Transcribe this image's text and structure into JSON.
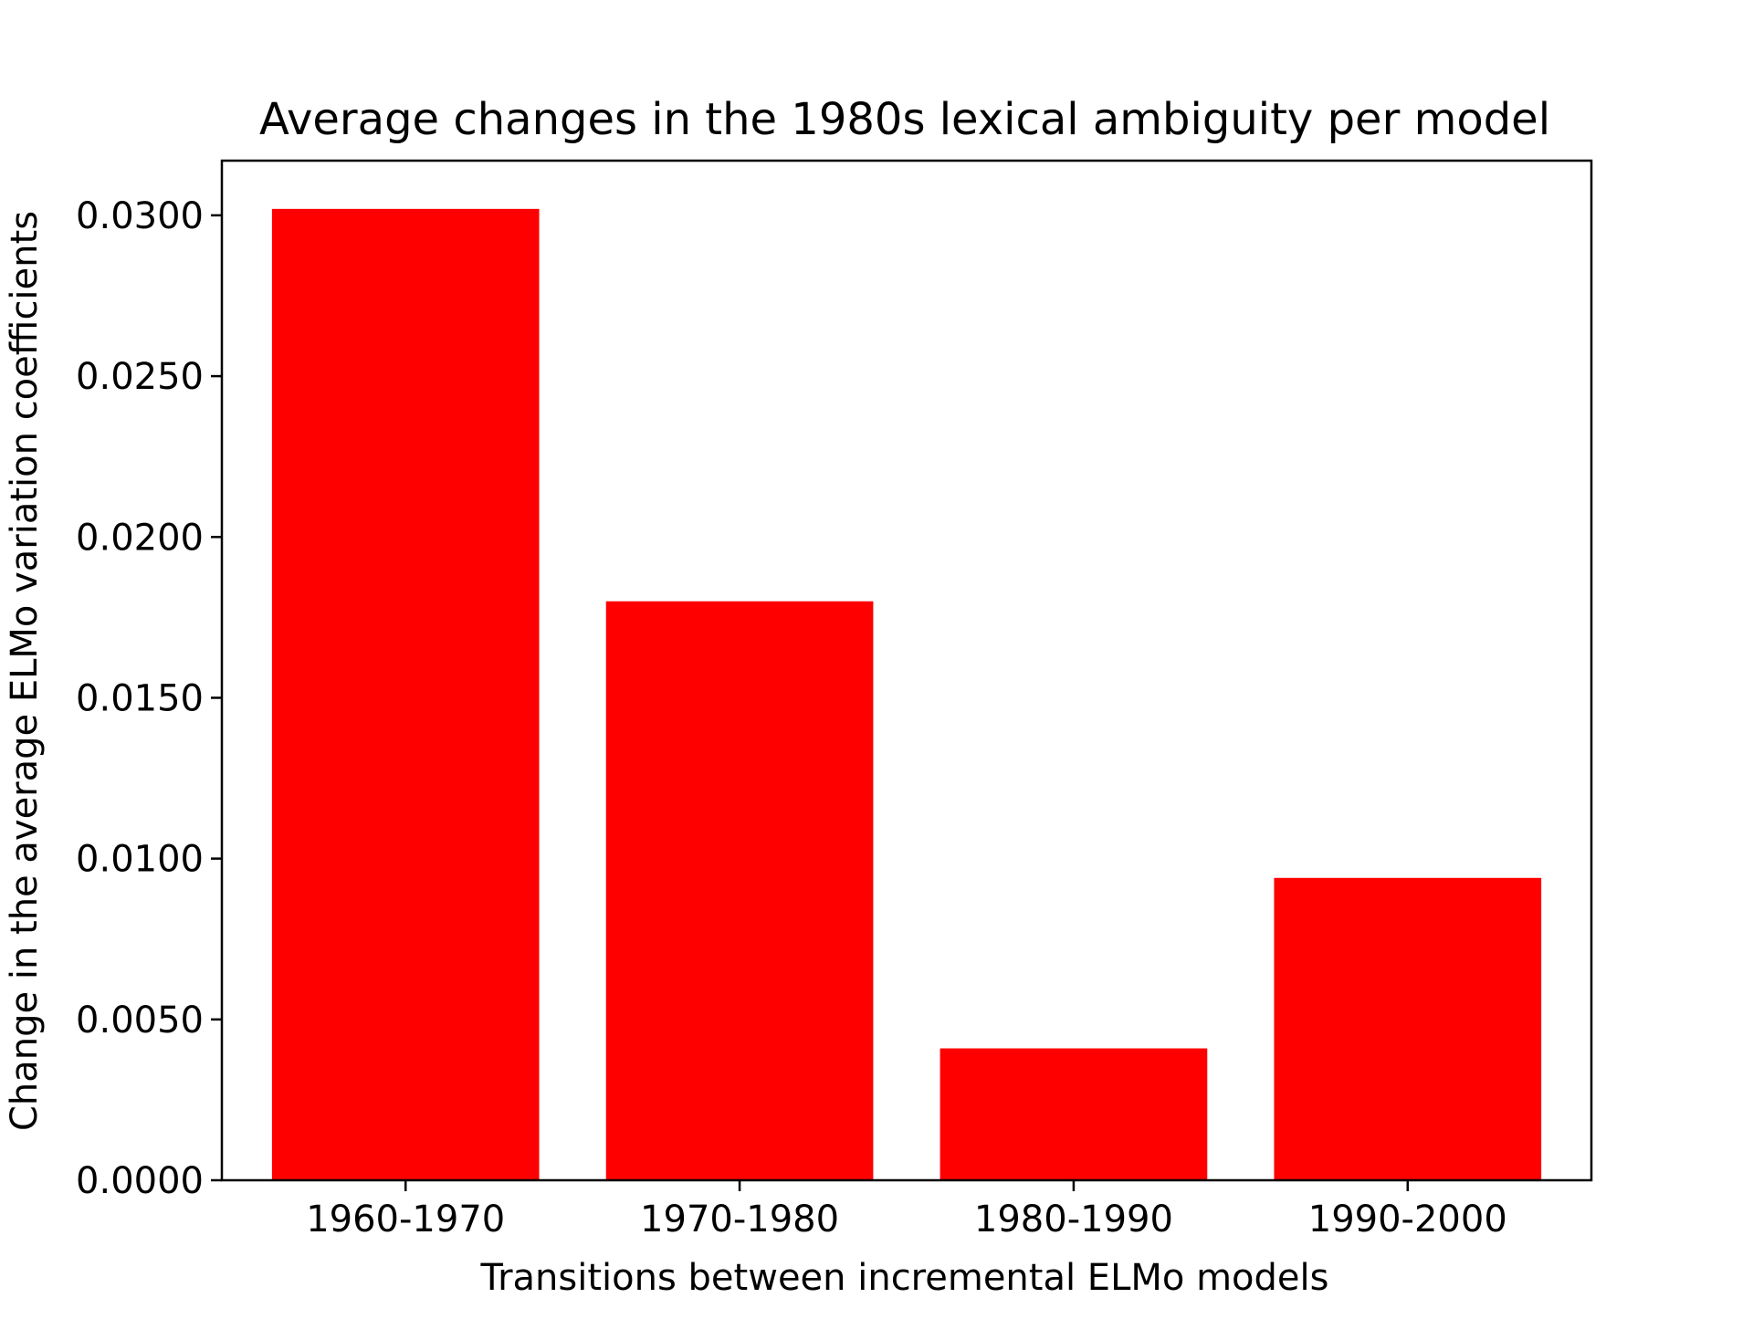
{
  "chart_data": {
    "type": "bar",
    "title": "Average changes in the 1980s lexical ambiguity per model",
    "xlabel": "Transitions between incremental ELMo models",
    "ylabel": "Change in the average ELMo variation coefficients",
    "categories": [
      "1960-1970",
      "1970-1980",
      "1980-1990",
      "1990-2000"
    ],
    "values": [
      0.0302,
      0.018,
      0.0041,
      0.0094
    ],
    "ylim": [
      0,
      0.0317
    ],
    "yticks": [
      0.0,
      0.005,
      0.01,
      0.015,
      0.02,
      0.025,
      0.03
    ],
    "ytick_labels": [
      "0.0000",
      "0.0050",
      "0.0100",
      "0.0150",
      "0.0200",
      "0.0250",
      "0.0300"
    ],
    "bar_color": "#ff0000",
    "grid": false,
    "legend": "none"
  }
}
